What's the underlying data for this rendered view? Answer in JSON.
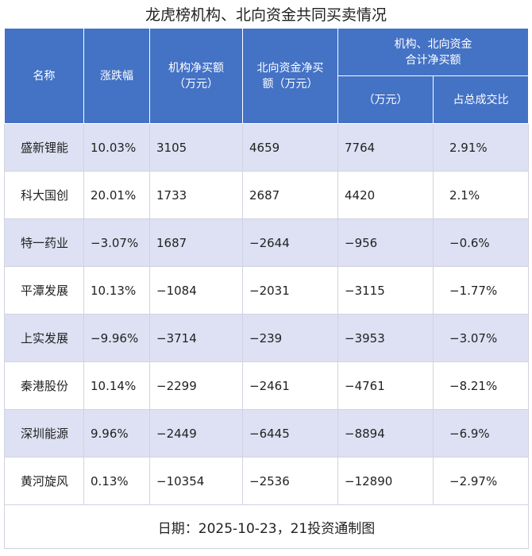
{
  "title": "龙虎榜机构、北向资金共同买卖情况",
  "header": {
    "columns": [
      [
        "名称"
      ],
      [
        "涨跌幅"
      ],
      [
        "机构净买额",
        "（万元）"
      ],
      [
        "北向资金净买",
        "额（万元）"
      ]
    ],
    "group": [
      "机构、北向资金",
      "合计净买额"
    ],
    "subcolumns": [
      "（万元）",
      "占总成交比"
    ]
  },
  "table": {
    "rows": [
      [
        "盛新锂能",
        "10.03%",
        "3105",
        "4659",
        "7764",
        "2.91%"
      ],
      [
        "科大国创",
        "20.01%",
        "1733",
        "2687",
        "4420",
        "2.1%"
      ],
      [
        "特一药业",
        "−3.07%",
        "1687",
        "−2644",
        "−956",
        "−0.6%"
      ],
      [
        "平潭发展",
        "10.13%",
        "−1084",
        "−2031",
        "−3115",
        "−1.77%"
      ],
      [
        "上实发展",
        "−9.96%",
        "−3714",
        "−239",
        "−3953",
        "−3.07%"
      ],
      [
        "秦港股份",
        "10.14%",
        "−2299",
        "−2461",
        "−4761",
        "−8.21%"
      ],
      [
        "深圳能源",
        "9.96%",
        "−2449",
        "−6445",
        "−8894",
        "−6.9%"
      ],
      [
        "黄河旋风",
        "0.13%",
        "−10354",
        "−2536",
        "−12890",
        "−2.97%"
      ]
    ]
  },
  "footer": "日期：2025-10-23，21投资通制图"
}
